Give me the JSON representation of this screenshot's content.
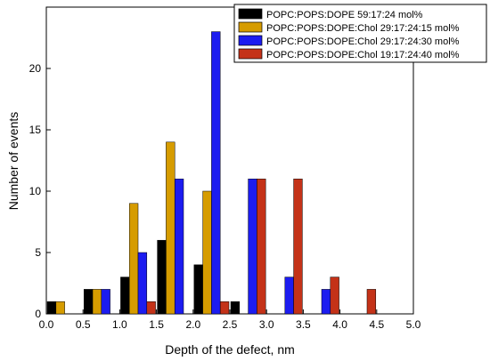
{
  "chart_data": {
    "type": "bar",
    "xlabel": "Depth of the defect, nm",
    "ylabel": "Number of events",
    "xlim": [
      0.0,
      5.0
    ],
    "ylim": [
      0,
      25
    ],
    "xticks": [
      "0.0",
      "0.5",
      "1.0",
      "1.5",
      "2.0",
      "2.5",
      "3.0",
      "3.5",
      "4.0",
      "4.5",
      "5.0"
    ],
    "yticks": [
      "0",
      "5",
      "10",
      "15",
      "20"
    ],
    "bin_width": 0.5,
    "bin_centers": [
      0.25,
      0.75,
      1.25,
      1.75,
      2.25,
      2.75,
      3.25,
      3.75,
      4.25
    ],
    "legend_position": "top-right",
    "grid": false,
    "series": [
      {
        "name": "POPC:POPS:DOPE 59:17:24 mol%",
        "color": "#000000",
        "values": [
          1,
          2,
          3,
          6,
          4,
          1,
          0,
          0,
          0
        ]
      },
      {
        "name": "POPC:POPS:DOPE:Chol 29:17:24:15 mol%",
        "color": "#d69c00",
        "values": [
          1,
          2,
          9,
          14,
          10,
          0,
          0,
          0,
          0
        ]
      },
      {
        "name": "POPC:POPS:DOPE:Chol 29:17:24:30 mol%",
        "color": "#1c1cf0",
        "values": [
          0,
          2,
          5,
          11,
          23,
          11,
          3,
          2,
          0
        ]
      },
      {
        "name": "POPC:POPS:DOPE:Chol 19:17:24:40 mol%",
        "color": "#c43218",
        "values": [
          0,
          0,
          1,
          0,
          1,
          11,
          11,
          3,
          2
        ]
      }
    ]
  }
}
